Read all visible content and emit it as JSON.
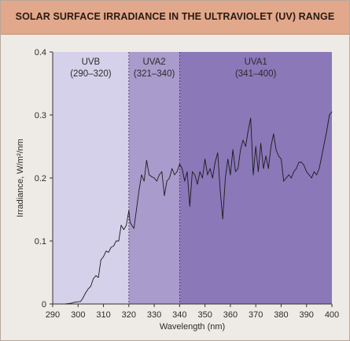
{
  "title": "SOLAR SURFACE IRRADIANCE IN THE ULTRAVIOLET (UV) RANGE",
  "colors": {
    "title_bar": "#e2a88b",
    "background": "#eeeae6",
    "uvb": "#d6d1ea",
    "uva2": "#a99bcc",
    "uva1": "#8a78b9",
    "line": "#1a1a1a"
  },
  "chart_data": {
    "type": "line",
    "title": "SOLAR SURFACE IRRADIANCE IN THE ULTRAVIOLET (UV) RANGE",
    "xlabel": "Wavelength (nm)",
    "ylabel": "Irradiance, W/m²/nm",
    "xlim": [
      290,
      400
    ],
    "ylim": [
      0,
      0.4
    ],
    "xticks": [
      290,
      300,
      310,
      320,
      330,
      340,
      350,
      360,
      370,
      380,
      390,
      400
    ],
    "yticks": [
      0,
      0.1,
      0.2,
      0.3,
      0.4
    ],
    "ytick_labels": [
      "0",
      "0.1",
      "0.2",
      "0.3",
      "0.4"
    ],
    "grid": false,
    "regions": [
      {
        "name": "UVB",
        "range_label": "(290–320)",
        "start": 290,
        "end": 320,
        "color": "#d6d1ea"
      },
      {
        "name": "UVA2",
        "range_label": "(321–340)",
        "start": 320,
        "end": 340,
        "color": "#a99bcc"
      },
      {
        "name": "UVA1",
        "range_label": "(341–400)",
        "start": 340,
        "end": 400,
        "color": "#8a78b9"
      }
    ],
    "series": [
      {
        "x": [
          295,
          297,
          299,
          301,
          302,
          303,
          304,
          305,
          306,
          307,
          308,
          309,
          310,
          311,
          312,
          313,
          314,
          315,
          316,
          317,
          318,
          319,
          320,
          320.5,
          321,
          322,
          323,
          324,
          325,
          326,
          327,
          328,
          329,
          330,
          331,
          332,
          333,
          334,
          335,
          336,
          337,
          338,
          339,
          340,
          341,
          342,
          343,
          344,
          345,
          346,
          347,
          348,
          349,
          350,
          351,
          352,
          353,
          354,
          355,
          356,
          357,
          358,
          359,
          360,
          361,
          362,
          363,
          364,
          365,
          366,
          367,
          368,
          369,
          370,
          371,
          372,
          373,
          374,
          375,
          376,
          377,
          378,
          379,
          380,
          381,
          382,
          383,
          384,
          385,
          386,
          387,
          388,
          389,
          390,
          391,
          392,
          393,
          394,
          395,
          396,
          397,
          398,
          399,
          400
        ],
        "y": [
          0,
          0.001,
          0.003,
          0.004,
          0.01,
          0.018,
          0.024,
          0.028,
          0.04,
          0.045,
          0.042,
          0.07,
          0.075,
          0.084,
          0.082,
          0.09,
          0.092,
          0.1,
          0.1,
          0.125,
          0.118,
          0.125,
          0.148,
          0.13,
          0.126,
          0.12,
          0.15,
          0.18,
          0.205,
          0.195,
          0.228,
          0.205,
          0.202,
          0.2,
          0.195,
          0.205,
          0.21,
          0.172,
          0.195,
          0.2,
          0.215,
          0.205,
          0.21,
          0.222,
          0.215,
          0.195,
          0.21,
          0.155,
          0.21,
          0.205,
          0.19,
          0.21,
          0.2,
          0.23,
          0.205,
          0.215,
          0.2,
          0.225,
          0.24,
          0.18,
          0.135,
          0.2,
          0.23,
          0.205,
          0.245,
          0.21,
          0.215,
          0.245,
          0.26,
          0.25,
          0.275,
          0.295,
          0.205,
          0.25,
          0.21,
          0.255,
          0.215,
          0.235,
          0.215,
          0.25,
          0.27,
          0.245,
          0.235,
          0.23,
          0.195,
          0.2,
          0.205,
          0.2,
          0.21,
          0.215,
          0.225,
          0.225,
          0.22,
          0.21,
          0.205,
          0.2,
          0.21,
          0.205,
          0.215,
          0.235,
          0.255,
          0.275,
          0.3,
          0.305
        ]
      }
    ]
  }
}
